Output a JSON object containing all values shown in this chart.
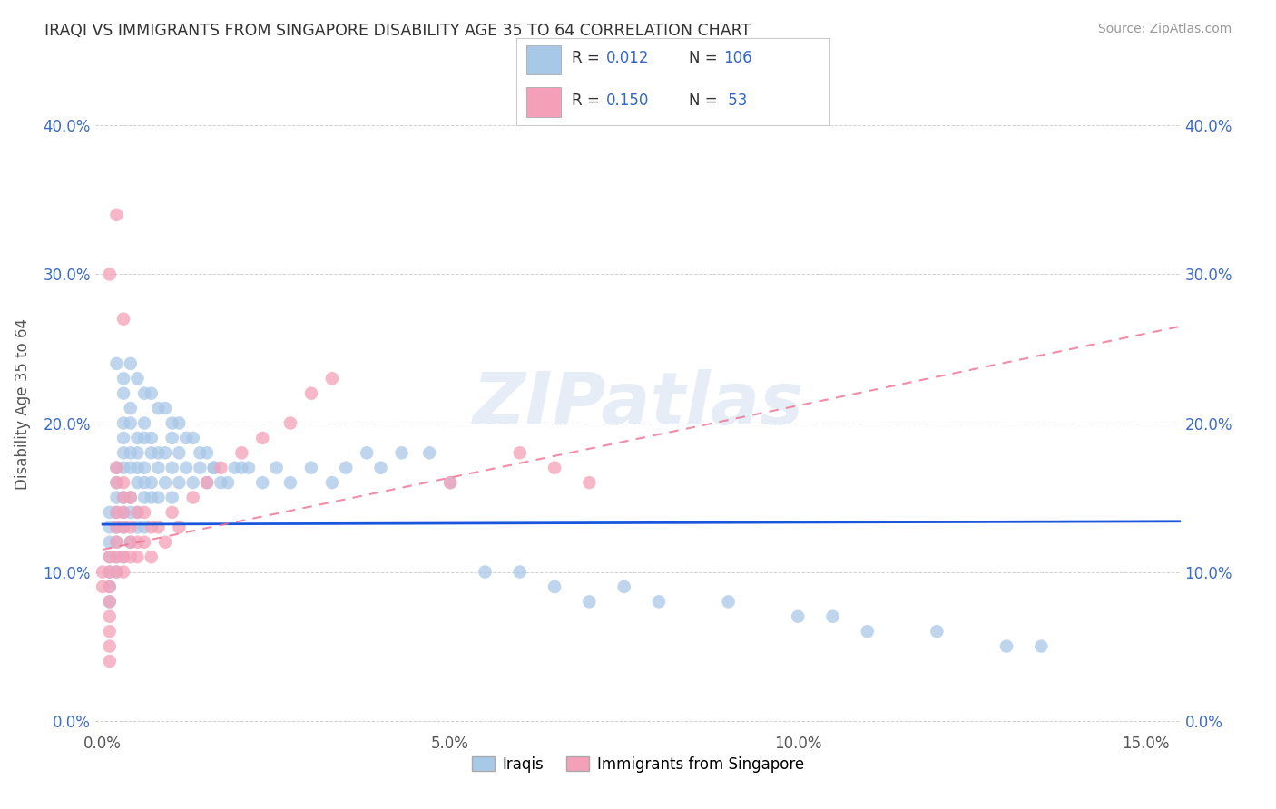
{
  "title": "IRAQI VS IMMIGRANTS FROM SINGAPORE DISABILITY AGE 35 TO 64 CORRELATION CHART",
  "source": "Source: ZipAtlas.com",
  "xlabel_ticks": [
    "0.0%",
    "5.0%",
    "10.0%",
    "15.0%"
  ],
  "xlabel_vals": [
    0.0,
    0.05,
    0.1,
    0.15
  ],
  "ylabel_ticks": [
    "0.0%",
    "10.0%",
    "20.0%",
    "30.0%",
    "40.0%"
  ],
  "ylabel_vals": [
    0.0,
    0.1,
    0.2,
    0.3,
    0.4
  ],
  "xlim": [
    -0.001,
    0.155
  ],
  "ylim": [
    -0.005,
    0.43
  ],
  "watermark": "ZIPatlas",
  "color_iraqis": "#a8c8e8",
  "color_singapore": "#f4a0b8",
  "color_blue_text": "#3366cc",
  "trendline_iraqis_color": "#1a56db",
  "trendline_singapore_color": "#f07090",
  "ylabel": "Disability Age 35 to 64",
  "iraq_trendline_x": [
    0.0,
    0.155
  ],
  "iraq_trendline_y": [
    0.132,
    0.134
  ],
  "sing_trendline_x": [
    0.0,
    0.155
  ],
  "sing_trendline_y": [
    0.115,
    0.265
  ],
  "iraq_x": [
    0.001,
    0.001,
    0.001,
    0.001,
    0.001,
    0.001,
    0.001,
    0.002,
    0.002,
    0.002,
    0.002,
    0.002,
    0.002,
    0.002,
    0.002,
    0.003,
    0.003,
    0.003,
    0.003,
    0.003,
    0.003,
    0.003,
    0.003,
    0.004,
    0.004,
    0.004,
    0.004,
    0.004,
    0.004,
    0.004,
    0.005,
    0.005,
    0.005,
    0.005,
    0.005,
    0.005,
    0.006,
    0.006,
    0.006,
    0.006,
    0.006,
    0.006,
    0.007,
    0.007,
    0.007,
    0.007,
    0.008,
    0.008,
    0.008,
    0.009,
    0.009,
    0.01,
    0.01,
    0.01,
    0.011,
    0.011,
    0.012,
    0.013,
    0.014,
    0.015,
    0.016,
    0.017,
    0.018,
    0.019,
    0.02,
    0.021,
    0.023,
    0.025,
    0.027,
    0.03,
    0.033,
    0.035,
    0.038,
    0.04,
    0.043,
    0.047,
    0.05,
    0.055,
    0.06,
    0.065,
    0.07,
    0.075,
    0.08,
    0.09,
    0.1,
    0.105,
    0.11,
    0.12,
    0.13,
    0.135,
    0.002,
    0.003,
    0.003,
    0.004,
    0.005,
    0.006,
    0.007,
    0.008,
    0.009,
    0.01,
    0.011,
    0.012,
    0.013,
    0.014,
    0.015,
    0.016
  ],
  "iraq_y": [
    0.14,
    0.13,
    0.12,
    0.11,
    0.1,
    0.09,
    0.08,
    0.17,
    0.16,
    0.15,
    0.14,
    0.13,
    0.12,
    0.11,
    0.1,
    0.2,
    0.19,
    0.18,
    0.17,
    0.15,
    0.14,
    0.13,
    0.11,
    0.21,
    0.2,
    0.18,
    0.17,
    0.15,
    0.14,
    0.12,
    0.19,
    0.18,
    0.17,
    0.16,
    0.14,
    0.13,
    0.2,
    0.19,
    0.17,
    0.16,
    0.15,
    0.13,
    0.19,
    0.18,
    0.16,
    0.15,
    0.18,
    0.17,
    0.15,
    0.18,
    0.16,
    0.19,
    0.17,
    0.15,
    0.18,
    0.16,
    0.17,
    0.16,
    0.17,
    0.16,
    0.17,
    0.16,
    0.16,
    0.17,
    0.17,
    0.17,
    0.16,
    0.17,
    0.16,
    0.17,
    0.16,
    0.17,
    0.18,
    0.17,
    0.18,
    0.18,
    0.16,
    0.1,
    0.1,
    0.09,
    0.08,
    0.09,
    0.08,
    0.08,
    0.07,
    0.07,
    0.06,
    0.06,
    0.05,
    0.05,
    0.24,
    0.23,
    0.22,
    0.24,
    0.23,
    0.22,
    0.22,
    0.21,
    0.21,
    0.2,
    0.2,
    0.19,
    0.19,
    0.18,
    0.18,
    0.17
  ],
  "sing_x": [
    0.0,
    0.0,
    0.001,
    0.001,
    0.001,
    0.001,
    0.001,
    0.001,
    0.001,
    0.001,
    0.002,
    0.002,
    0.002,
    0.002,
    0.002,
    0.002,
    0.002,
    0.003,
    0.003,
    0.003,
    0.003,
    0.003,
    0.003,
    0.004,
    0.004,
    0.004,
    0.004,
    0.005,
    0.005,
    0.005,
    0.006,
    0.006,
    0.007,
    0.007,
    0.008,
    0.009,
    0.01,
    0.011,
    0.013,
    0.015,
    0.017,
    0.02,
    0.023,
    0.027,
    0.03,
    0.033,
    0.05,
    0.06,
    0.065,
    0.07,
    0.001,
    0.002,
    0.003
  ],
  "sing_y": [
    0.1,
    0.09,
    0.1,
    0.09,
    0.08,
    0.07,
    0.11,
    0.06,
    0.05,
    0.04,
    0.17,
    0.16,
    0.14,
    0.13,
    0.12,
    0.11,
    0.1,
    0.16,
    0.15,
    0.14,
    0.13,
    0.11,
    0.1,
    0.15,
    0.13,
    0.12,
    0.11,
    0.14,
    0.12,
    0.11,
    0.14,
    0.12,
    0.13,
    0.11,
    0.13,
    0.12,
    0.14,
    0.13,
    0.15,
    0.16,
    0.17,
    0.18,
    0.19,
    0.2,
    0.22,
    0.23,
    0.16,
    0.18,
    0.17,
    0.16,
    0.3,
    0.34,
    0.27
  ]
}
